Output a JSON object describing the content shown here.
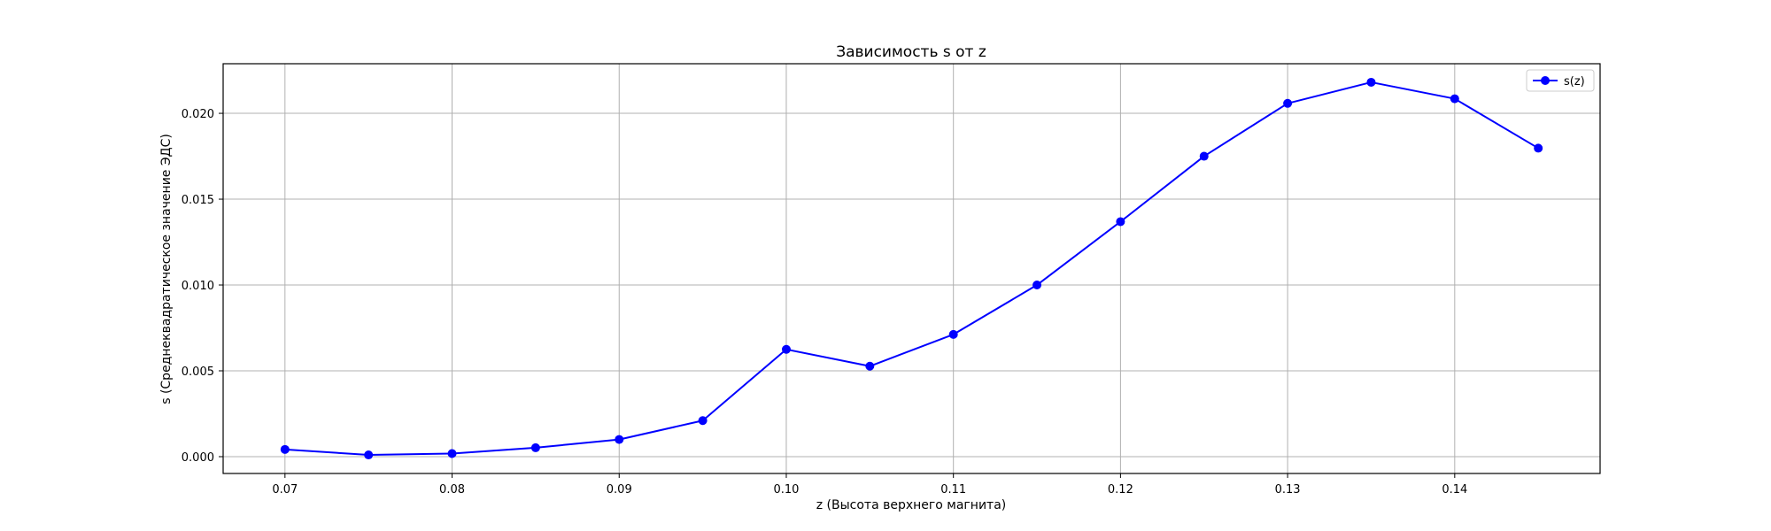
{
  "chart_data": {
    "type": "line",
    "title": "Зависимость s от z",
    "xlabel": "z (Высота верхнего магнита)",
    "ylabel": "s (Среднеквадратическое значение ЭДС)",
    "xlim": [
      0.0663,
      0.1487
    ],
    "ylim": [
      -0.00098,
      0.02289
    ],
    "x_ticks": [
      "0.07",
      "0.08",
      "0.09",
      "0.10",
      "0.11",
      "0.12",
      "0.13",
      "0.14"
    ],
    "x_tick_values": [
      0.07,
      0.08,
      0.09,
      0.1,
      0.11,
      0.12,
      0.13,
      0.14
    ],
    "y_ticks": [
      "0.000",
      "0.005",
      "0.010",
      "0.015",
      "0.020"
    ],
    "y_tick_values": [
      0.0,
      0.005,
      0.01,
      0.015,
      0.02
    ],
    "grid": true,
    "legend_position": "top-right",
    "series": [
      {
        "name": "s(z)",
        "color": "#0000ff",
        "marker": "circle",
        "x": [
          0.07,
          0.075,
          0.08,
          0.085,
          0.09,
          0.095,
          0.1,
          0.105,
          0.11,
          0.115,
          0.12,
          0.125,
          0.13,
          0.135,
          0.14,
          0.145
        ],
        "y": [
          0.00042,
          0.0001,
          0.00018,
          0.00052,
          0.001,
          0.0021,
          0.00625,
          0.00527,
          0.00712,
          0.01,
          0.01369,
          0.0175,
          0.02058,
          0.02181,
          0.02085,
          0.01797
        ]
      }
    ]
  }
}
